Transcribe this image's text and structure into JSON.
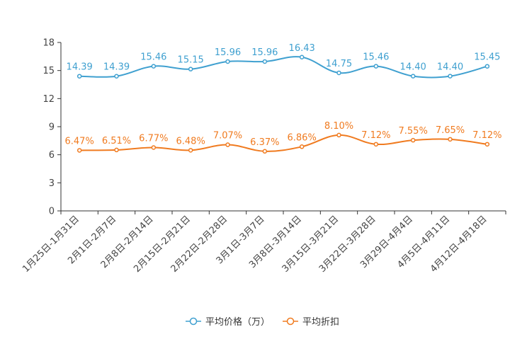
{
  "chart_data": {
    "type": "line",
    "title": "",
    "xlabel": "",
    "ylabel": "",
    "ylim": [
      0,
      18
    ],
    "yticks": [
      0,
      3,
      6,
      9,
      12,
      15,
      18
    ],
    "grid": false,
    "legend_position": "bottom-center",
    "categories": [
      "1月25日-1月31日",
      "2月1日-2月7日",
      "2月8日-2月14日",
      "2月15日-2月21日",
      "2月22日-2月28日",
      "3月1日-3月7日",
      "3月8日-3月14日",
      "3月15日-3月21日",
      "3月22日-3月28日",
      "3月29日-4月4日",
      "4月5日-4月11日",
      "4月12日-4月18日"
    ],
    "series": [
      {
        "key": "price",
        "name": "平均价格（万）",
        "color": "#3fa0d0",
        "values": [
          14.39,
          14.39,
          15.46,
          15.15,
          15.96,
          15.96,
          16.43,
          14.75,
          15.46,
          14.4,
          14.4,
          15.45
        ],
        "labels": [
          "14.39",
          "14.39",
          "15.46",
          "15.15",
          "15.96",
          "15.96",
          "16.43",
          "14.75",
          "15.46",
          "14.40",
          "14.40",
          "15.45"
        ]
      },
      {
        "key": "discount",
        "name": "平均折扣",
        "color": "#f07b20",
        "values": [
          6.47,
          6.51,
          6.77,
          6.48,
          7.07,
          6.37,
          6.86,
          8.1,
          7.12,
          7.55,
          7.65,
          7.12
        ],
        "labels": [
          "6.47%",
          "6.51%",
          "6.77%",
          "6.48%",
          "7.07%",
          "6.37%",
          "6.86%",
          "8.10%",
          "7.12%",
          "7.55%",
          "7.65%",
          "7.12%"
        ]
      }
    ]
  }
}
